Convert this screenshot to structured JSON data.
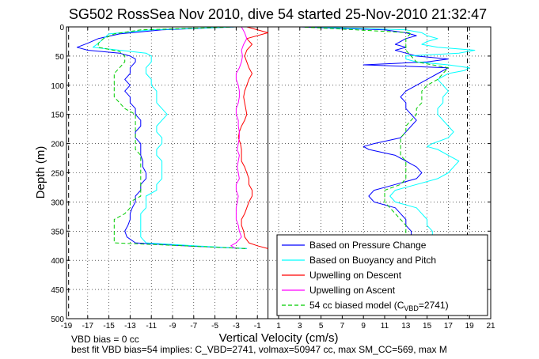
{
  "chart_data": {
    "type": "line",
    "title": "SG502 RossSea Nov 2010, dive 54 started 25-Nov-2010 21:32:47",
    "xlabel": "Vertical Velocity (cm/s)",
    "ylabel": "Depth (m)",
    "xlim": [
      -19,
      21
    ],
    "ylim": [
      0,
      500
    ],
    "y_reversed": true,
    "grid": true,
    "legend_position": "bottom-right",
    "x_ticks": [
      "-19",
      "-17",
      "-15",
      "-13",
      "-11",
      "-9",
      "-7",
      "-5",
      "-3",
      "-1",
      "1",
      "3",
      "5",
      "7",
      "9",
      "11",
      "13",
      "15",
      "17",
      "19",
      "21"
    ],
    "y_ticks": [
      "0",
      "50",
      "100",
      "150",
      "200",
      "250",
      "300",
      "350",
      "400",
      "450",
      "500"
    ],
    "reference_lines": [
      {
        "style": "dashed",
        "x": -18.8
      },
      {
        "style": "dashed",
        "x": 18.8
      },
      {
        "style": "solid",
        "x": 0
      }
    ],
    "series": [
      {
        "name": "Based on Pressure Change",
        "color": "#0000ff",
        "style": "solid",
        "descent": {
          "depth": [
            0,
            5,
            12,
            20,
            28,
            35,
            40,
            45,
            50,
            55,
            60,
            70,
            80,
            90,
            100,
            110,
            120,
            130,
            140,
            150,
            160,
            170,
            180,
            190,
            200,
            210,
            220,
            230,
            240,
            250,
            260,
            270,
            280,
            290,
            300,
            310,
            320,
            330,
            340,
            350,
            360,
            370,
            375,
            380
          ],
          "velocity": [
            -3,
            -10,
            -14,
            -16,
            -17,
            -18,
            -17,
            -14,
            -13,
            -12.5,
            -12.5,
            -13,
            -13,
            -13.5,
            -13,
            -13.5,
            -13,
            -13,
            -12.5,
            -12.5,
            -12,
            -12,
            -12.5,
            -12.5,
            -12,
            -12,
            -12,
            -11.8,
            -11.8,
            -11.5,
            -11.5,
            -12,
            -12,
            -12.5,
            -12.5,
            -12.8,
            -13,
            -13,
            -13.2,
            -13.5,
            -13.3,
            -12.5,
            -8,
            -2
          ]
        },
        "ascent": {
          "depth": [
            380,
            375,
            370,
            360,
            350,
            340,
            330,
            320,
            310,
            300,
            290,
            280,
            270,
            260,
            250,
            240,
            230,
            220,
            210,
            205,
            200,
            190,
            180,
            170,
            160,
            150,
            140,
            130,
            120,
            110,
            100,
            90,
            80,
            70,
            65,
            60,
            55,
            50,
            45,
            40,
            35,
            30,
            25,
            20,
            15,
            10,
            5,
            0
          ],
          "velocity": [
            2,
            9,
            12,
            13.5,
            13.5,
            13,
            13,
            12.5,
            12,
            10,
            9.5,
            10,
            12,
            14,
            14.5,
            14,
            13,
            12,
            9.5,
            9,
            10,
            12.5,
            13,
            13.5,
            14,
            13.5,
            13,
            13,
            12.5,
            13,
            14,
            15,
            16,
            17,
            9,
            15,
            17,
            14,
            13,
            12,
            13,
            12,
            12.5,
            13,
            14,
            13,
            11,
            3
          ]
        }
      },
      {
        "name": "Based on Buoyancy and Pitch",
        "color": "#00ffff",
        "style": "solid",
        "descent": {
          "depth": [
            0,
            5,
            12,
            20,
            28,
            35,
            40,
            45,
            50,
            60,
            70,
            80,
            90,
            100,
            110,
            120,
            130,
            140,
            150,
            160,
            170,
            180,
            190,
            200,
            210,
            220,
            230,
            240,
            250,
            260,
            270,
            280,
            290,
            300,
            310,
            320,
            330,
            340,
            350,
            360,
            370,
            375,
            380
          ],
          "velocity": [
            -3,
            -11,
            -15,
            -15.5,
            -16,
            -16.5,
            -14,
            -11.5,
            -11,
            -11,
            -11.5,
            -11.5,
            -11,
            -11,
            -10.5,
            -10.5,
            -10.5,
            -10,
            -9.5,
            -10,
            -10.5,
            -10.5,
            -10,
            -10,
            -10.5,
            -10.5,
            -10,
            -10,
            -10,
            -10,
            -10.5,
            -10.5,
            -11.5,
            -11.5,
            -11.5,
            -12,
            -12,
            -12,
            -12,
            -12,
            -11.5,
            -7,
            -2
          ]
        },
        "ascent": {
          "depth": [
            380,
            375,
            370,
            360,
            350,
            340,
            330,
            320,
            310,
            300,
            290,
            280,
            270,
            260,
            250,
            240,
            230,
            220,
            210,
            205,
            200,
            190,
            180,
            170,
            160,
            150,
            140,
            130,
            120,
            110,
            100,
            90,
            80,
            75,
            70,
            65,
            60,
            55,
            50,
            45,
            40,
            35,
            30,
            25,
            20,
            15,
            10,
            5,
            0
          ],
          "velocity": [
            2,
            9,
            14,
            15.5,
            15.5,
            15,
            15,
            14.5,
            14,
            12,
            11.5,
            12,
            14,
            16,
            17,
            17.5,
            18,
            17,
            16,
            15,
            15.5,
            17,
            17.5,
            17,
            16.5,
            16,
            16,
            16.5,
            16.5,
            17,
            16.5,
            16,
            17,
            18.5,
            19,
            17,
            14,
            13,
            13,
            18,
            19.5,
            16,
            14.5,
            15,
            16,
            15,
            14.5,
            13,
            4
          ]
        }
      },
      {
        "name": "Upwelling on Descent",
        "color": "#ff0000",
        "style": "solid",
        "depth": [
          0,
          10,
          20,
          30,
          40,
          50,
          60,
          70,
          80,
          90,
          100,
          110,
          120,
          130,
          140,
          150,
          160,
          170,
          180,
          190,
          200,
          210,
          220,
          230,
          240,
          250,
          260,
          270,
          280,
          290,
          300,
          310,
          320,
          330,
          340,
          350,
          360,
          370,
          375,
          380
        ],
        "velocity": [
          -2,
          0,
          -2,
          -1.5,
          -2,
          -2.2,
          -2,
          -1.8,
          -1.5,
          -1.8,
          -2,
          -2.2,
          -2.3,
          -2.2,
          -2.1,
          -2,
          -2.2,
          -2.5,
          -2.7,
          -2.8,
          -2.6,
          -2.5,
          -2.5,
          -2.5,
          -2.2,
          -2,
          -1.8,
          -1.8,
          -1.5,
          -1.5,
          -1.8,
          -2,
          -2.2,
          -2.5,
          -2.5,
          -2.3,
          -2.2,
          -1.8,
          -1,
          0
        ]
      },
      {
        "name": "Upwelling on Ascent",
        "color": "#ff00ff",
        "style": "solid",
        "depth": [
          0,
          10,
          20,
          30,
          40,
          50,
          60,
          70,
          80,
          90,
          100,
          110,
          120,
          130,
          140,
          150,
          160,
          170,
          180,
          190,
          200,
          210,
          220,
          230,
          240,
          250,
          260,
          270,
          280,
          290,
          300,
          310,
          320,
          330,
          340,
          350,
          360,
          370,
          375,
          380
        ],
        "velocity": [
          -2.5,
          -2.2,
          -2,
          -2.3,
          -2.5,
          -2.4,
          -2.5,
          -2.7,
          -3,
          -3,
          -2.8,
          -2.7,
          -2.7,
          -2.8,
          -3,
          -3,
          -2.8,
          -2.8,
          -2.7,
          -2.7,
          -2.8,
          -2.9,
          -2.7,
          -2.8,
          -2.9,
          -2.8,
          -2.7,
          -3,
          -3,
          -2.8,
          -2.9,
          -3,
          -3,
          -3,
          -2.8,
          -2.7,
          -2.5,
          -3,
          -3.5,
          -3
        ]
      },
      {
        "name": "54 cc biased model (CVBD=2741)",
        "color": "#00cc00",
        "style": "dashed",
        "descent": {
          "depth": [
            0,
            5,
            12,
            20,
            28,
            35,
            42,
            50,
            60,
            70,
            80,
            90,
            100,
            110,
            120,
            130,
            140,
            150,
            160,
            170,
            180,
            190,
            200,
            210,
            220,
            230,
            240,
            250,
            260,
            270,
            280,
            290,
            300,
            310,
            320,
            330,
            340,
            350,
            360,
            370,
            375,
            380
          ],
          "velocity": [
            -3,
            -12,
            -14.5,
            -15.5,
            -16,
            -16,
            -14,
            -13.5,
            -13.5,
            -14,
            -14.5,
            -14.5,
            -14.5,
            -14.5,
            -14.5,
            -14,
            -13.5,
            -12.5,
            -12.5,
            -12.5,
            -12.5,
            -12.5,
            -12.5,
            -12.5,
            -12,
            -12,
            -12,
            -12,
            -12,
            -12,
            -12,
            -12,
            -13,
            -13,
            -13.5,
            -14.5,
            -14.5,
            -14.5,
            -14.5,
            -14.5,
            -8,
            -2
          ]
        },
        "ascent": {
          "depth": [
            380,
            375,
            370,
            360,
            350,
            340,
            330,
            320,
            310,
            300,
            290,
            280,
            270,
            260,
            250,
            240,
            230,
            220,
            210,
            200,
            190,
            180,
            170,
            160,
            150,
            140,
            130,
            120,
            110,
            100,
            90,
            80,
            70,
            60,
            50,
            40,
            30,
            20,
            10,
            0
          ],
          "velocity": [
            2,
            9,
            13,
            13,
            13,
            13,
            12.5,
            12,
            11.5,
            11,
            11,
            11,
            12.5,
            13,
            13,
            13,
            13,
            12.5,
            12.5,
            12.5,
            12.5,
            13,
            13,
            13.5,
            14,
            14,
            14.5,
            14.5,
            14.5,
            15,
            16,
            16.5,
            17,
            14,
            13.5,
            13,
            13,
            13,
            13.5,
            3
          ]
        }
      }
    ]
  },
  "notes": {
    "line1": "VBD bias = 0 cc",
    "line2": "best fit VBD bias=54 implies: C_VBD=2741, volmax=50947 cc, max SM_CC=569, max M"
  },
  "legend": {
    "items": [
      {
        "label": "Based on Pressure Change",
        "color": "#0000ff",
        "dash": false
      },
      {
        "label": "Based on Buoyancy and Pitch",
        "color": "#00ffff",
        "dash": false
      },
      {
        "label": "Upwelling on Descent",
        "color": "#ff0000",
        "dash": false
      },
      {
        "label": "Upwelling on Ascent",
        "color": "#ff00ff",
        "dash": false
      },
      {
        "label": "54 cc biased model (C",
        "sub": "VBD",
        "suffix": "=2741)",
        "color": "#00cc00",
        "dash": true
      }
    ]
  }
}
